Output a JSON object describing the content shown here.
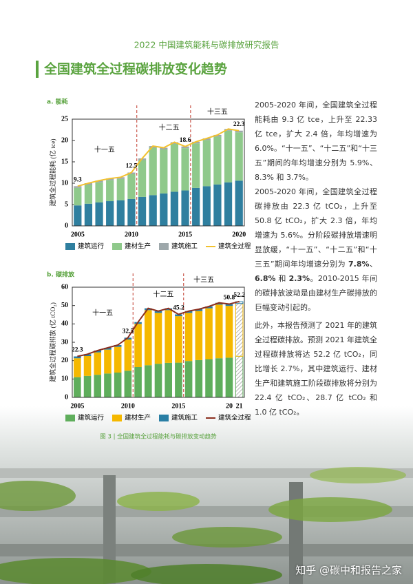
{
  "header": "2022 中国建筑能耗与碳排放研究报告",
  "title": "全国建筑全过程碳排放变化趋势",
  "chart_data": [
    {
      "type": "bar",
      "stacked": true,
      "title": "a. 能耗",
      "ylabel": "建筑全过程能耗 (亿 tce)",
      "categories": [
        "2005",
        null,
        null,
        null,
        null,
        "2010",
        null,
        null,
        null,
        null,
        "2015",
        null,
        null,
        null,
        null,
        "2020"
      ],
      "ylim": [
        0,
        25
      ],
      "yticks": [
        0,
        5,
        10,
        15,
        20,
        25
      ],
      "periods": [
        "十一五",
        "十二五",
        "十三五"
      ],
      "series": [
        {
          "name": "建筑运行",
          "color": "#2f7f9f",
          "values": [
            4.8,
            5.2,
            5.5,
            5.8,
            6.0,
            6.3,
            6.8,
            7.2,
            7.6,
            8.0,
            8.3,
            8.9,
            9.3,
            9.7,
            10.2,
            10.6
          ]
        },
        {
          "name": "建材生产",
          "color": "#8fc98b",
          "values": [
            4.1,
            4.4,
            4.7,
            4.9,
            5.0,
            5.8,
            8.6,
            11.1,
            10.3,
            11.2,
            9.9,
            10.4,
            10.8,
            11.2,
            12.1,
            11.3
          ]
        },
        {
          "name": "建筑施工",
          "color": "#9ea8ab",
          "values": [
            0.4,
            0.4,
            0.4,
            0.4,
            0.4,
            0.4,
            0.4,
            0.4,
            0.4,
            0.4,
            0.4,
            0.4,
            0.4,
            0.4,
            0.4,
            0.4
          ]
        },
        {
          "name": "建筑全过程",
          "type": "line",
          "color": "#f2c12e",
          "values": [
            9.3,
            10.0,
            10.6,
            11.1,
            11.4,
            12.5,
            15.8,
            18.7,
            18.3,
            19.6,
            18.6,
            19.7,
            20.5,
            21.3,
            22.7,
            22.3
          ],
          "value_labels": [
            "9.3",
            null,
            null,
            null,
            null,
            "12.5",
            null,
            null,
            null,
            null,
            "18.6",
            null,
            null,
            null,
            null,
            "22.3"
          ]
        }
      ]
    },
    {
      "type": "bar",
      "stacked": true,
      "title": "b. 碳排放",
      "ylabel": "建筑全过程碳排放 (亿 tCO₂)",
      "categories": [
        "2005",
        null,
        null,
        null,
        null,
        "2010",
        null,
        null,
        null,
        null,
        "2015",
        null,
        null,
        null,
        null,
        "20",
        "21"
      ],
      "ylim": [
        0,
        60
      ],
      "yticks": [
        0,
        10,
        20,
        30,
        40,
        50,
        60
      ],
      "periods": [
        "十一五",
        "十二五",
        "十三五"
      ],
      "series": [
        {
          "name": "建筑运行",
          "color": "#5fae5c",
          "values": [
            11,
            11.7,
            12.3,
            13,
            13.5,
            14.5,
            16.5,
            17.5,
            18.3,
            18.8,
            18.9,
            19.8,
            20.3,
            20.8,
            21.3,
            21.6,
            22.4
          ]
        },
        {
          "name": "建材生产",
          "color": "#f5b800",
          "values": [
            10.3,
            10.8,
            12.2,
            13,
            14,
            17,
            23.5,
            30,
            27.7,
            28.7,
            25.3,
            26.2,
            26.7,
            27.7,
            29.2,
            28.2,
            28.7
          ]
        },
        {
          "name": "建筑施工",
          "color": "#2a7fa5",
          "values": [
            1,
            1,
            1,
            1,
            1,
            1,
            1,
            1,
            1,
            1,
            1,
            1,
            1,
            1,
            1,
            1,
            1
          ]
        },
        {
          "name": "建筑全过程",
          "type": "line",
          "color": "#8b2e1e",
          "values": [
            22.3,
            23.5,
            25.5,
            27,
            28.5,
            32.5,
            41,
            48.5,
            47,
            48.5,
            45.2,
            47,
            48,
            49.5,
            51.5,
            50.8,
            52.2
          ],
          "value_labels": [
            "22.3",
            null,
            null,
            null,
            null,
            "32.5",
            null,
            null,
            null,
            null,
            "45.2",
            null,
            null,
            null,
            null,
            "50.8",
            "52.2"
          ]
        }
      ]
    }
  ],
  "caption": "图 3 | 全国建筑全过程能耗与碳排放变动趋势",
  "paragraphs": [
    [
      {
        "text": "2005-2020 年间，全国建筑全过程能耗由 9.3 亿 tce，上升至 22.33 亿 tce，扩大 2.4 倍，年均增速为 6.0%。“十一五”、“十二五”和“十三五”期间的年均增速分别为 5.9%、8.3% 和 3.7%。"
      }
    ],
    [
      {
        "text": "2005-2020 年间，全国建筑全过程碳排放由 22.3 亿 tCO₂，上升至 50.8 亿 tCO₂，扩大 2.3 倍，年均增速为 5.6%。分阶段碳排放增速明显放缓，“十一五”、“十二五”和“十三五”期间年均增速分别为 "
      },
      {
        "text": "7.8%",
        "bold": true
      },
      {
        "text": "、"
      },
      {
        "text": "6.8%",
        "bold": true
      },
      {
        "text": " 和 "
      },
      {
        "text": "2.3%",
        "bold": true
      },
      {
        "text": "。2010-2015 年间的碳排放波动是由建材生产碳排放的巨幅变动引起的。"
      }
    ],
    [
      {
        "text": "此外，本报告预测了 2021 年的建筑全过程碳排放。预测 2021 年建筑全过程碳排放将达 52.2 亿 tCO₂，同比增长 2.7%，其中建筑运行、建材生产和建筑施工阶段碳排放将分别为 22.4 亿 tCO₂、28.7 亿 tCO₂ 和 1.0 亿 tCO₂。"
      }
    ]
  ],
  "watermark": "知乎 @碳中和报告之家"
}
